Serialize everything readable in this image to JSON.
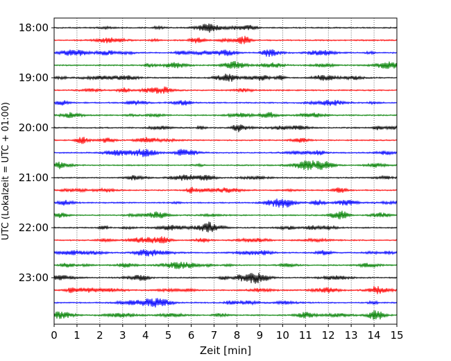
{
  "chart_data": {
    "type": "line",
    "title": "",
    "xlabel": "Zeit  [min]",
    "ylabel": "UTC (Lokalzeit = UTC + 01:00)",
    "xlim": [
      0,
      15
    ],
    "x_ticks": [
      "0",
      "1",
      "2",
      "3",
      "4",
      "5",
      "6",
      "7",
      "8",
      "9",
      "10",
      "11",
      "12",
      "13",
      "14",
      "15"
    ],
    "y_ticks": [
      "18:00",
      "19:00",
      "20:00",
      "21:00",
      "22:00",
      "23:00"
    ],
    "grid": "vertical-dotted",
    "trace_interval_minutes": 15,
    "trace_colors": [
      "#000000",
      "#ff0000",
      "#0000ff",
      "#008000"
    ],
    "traces": [
      {
        "start": "18:00",
        "color": "#000000"
      },
      {
        "start": "18:15",
        "color": "#ff0000"
      },
      {
        "start": "18:30",
        "color": "#0000ff"
      },
      {
        "start": "18:45",
        "color": "#008000"
      },
      {
        "start": "19:00",
        "color": "#000000"
      },
      {
        "start": "19:15",
        "color": "#ff0000"
      },
      {
        "start": "19:30",
        "color": "#0000ff"
      },
      {
        "start": "19:45",
        "color": "#008000"
      },
      {
        "start": "20:00",
        "color": "#000000"
      },
      {
        "start": "20:15",
        "color": "#ff0000"
      },
      {
        "start": "20:30",
        "color": "#0000ff"
      },
      {
        "start": "20:45",
        "color": "#008000"
      },
      {
        "start": "21:00",
        "color": "#000000"
      },
      {
        "start": "21:15",
        "color": "#ff0000"
      },
      {
        "start": "21:30",
        "color": "#0000ff"
      },
      {
        "start": "21:45",
        "color": "#008000"
      },
      {
        "start": "22:00",
        "color": "#000000"
      },
      {
        "start": "22:15",
        "color": "#ff0000"
      },
      {
        "start": "22:30",
        "color": "#0000ff"
      },
      {
        "start": "22:45",
        "color": "#008000"
      },
      {
        "start": "23:00",
        "color": "#000000"
      },
      {
        "start": "23:15",
        "color": "#ff0000"
      },
      {
        "start": "23:30",
        "color": "#0000ff"
      },
      {
        "start": "23:45",
        "color": "#008000"
      }
    ]
  }
}
